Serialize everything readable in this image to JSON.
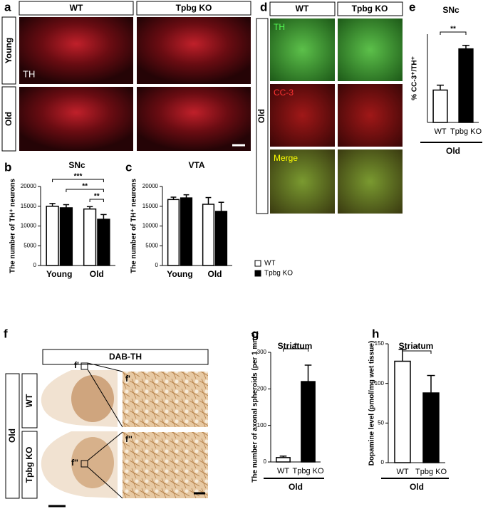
{
  "chart_data": [
    {
      "type": "bar",
      "panel": "b",
      "title": "SNc",
      "y_label": "The number of TH⁺ neurons",
      "categories": [
        "Young",
        "Old"
      ],
      "series": [
        {
          "name": "WT",
          "color": "#ffffff",
          "values": [
            15000,
            14300
          ],
          "errors": [
            700,
            600
          ]
        },
        {
          "name": "Tpbg KO",
          "color": "#000000",
          "values": [
            14600,
            11700
          ],
          "errors": [
            800,
            1200
          ]
        }
      ],
      "ylim": [
        0,
        20000
      ],
      "yticks": [
        0,
        5000,
        10000,
        15000,
        20000
      ],
      "annotations": [
        "***",
        "**",
        "**"
      ]
    },
    {
      "type": "bar",
      "panel": "c",
      "title": "VTA",
      "y_label": "The number of TH⁺ neurons",
      "categories": [
        "Young",
        "Old"
      ],
      "series": [
        {
          "name": "WT",
          "color": "#ffffff",
          "values": [
            16700,
            15500
          ],
          "errors": [
            600,
            1700
          ]
        },
        {
          "name": "Tpbg KO",
          "color": "#000000",
          "values": [
            17100,
            13700
          ],
          "errors": [
            800,
            2300
          ]
        }
      ],
      "ylim": [
        0,
        20000
      ],
      "yticks": [
        0,
        5000,
        10000,
        15000,
        20000
      ],
      "legend": "right"
    },
    {
      "type": "bar",
      "panel": "e",
      "title": "SNc",
      "y_label": "% CC-3⁺/TH⁺",
      "categories": [
        "WT",
        "Tpbg KO"
      ],
      "values": [
        16.5,
        37.5
      ],
      "errors": [
        2.5,
        1.8
      ],
      "colors": [
        "#ffffff",
        "#000000"
      ],
      "ylim": [
        0,
        45
      ],
      "group_label": "Old",
      "annotations": [
        "**"
      ]
    },
    {
      "type": "bar",
      "panel": "g",
      "title": "Striatum",
      "y_label": "The number of axonal spheroids (per 1 mm²)",
      "categories": [
        "WT",
        "Tpbg KO"
      ],
      "values": [
        12,
        220
      ],
      "errors": [
        4,
        45
      ],
      "colors": [
        "#ffffff",
        "#000000"
      ],
      "ylim": [
        0,
        300
      ],
      "yticks": [
        0,
        100,
        200,
        300
      ],
      "group_label": "Old",
      "annotations": [
        "*"
      ]
    },
    {
      "type": "bar",
      "panel": "h",
      "title": "Striatum",
      "y_label": "Dopamine level (pmol/mg wet tissue)",
      "categories": [
        "WT",
        "Tpbg KO"
      ],
      "values": [
        128,
        88
      ],
      "errors": [
        15,
        22
      ],
      "colors": [
        "#ffffff",
        "#000000"
      ],
      "ylim": [
        0,
        150
      ],
      "yticks": [
        0,
        50,
        100,
        150
      ],
      "group_label": "Old",
      "annotations": [
        "*"
      ]
    }
  ],
  "images": {
    "a": {
      "panel": "a",
      "columns": [
        "WT",
        "Tpbg KO"
      ],
      "rows": [
        "Young",
        "Old"
      ],
      "stain": "TH"
    },
    "d": {
      "panel": "d",
      "columns": [
        "WT",
        "Tpbg KO"
      ],
      "row": "Old",
      "channels": [
        "TH",
        "CC-3",
        "Merge"
      ]
    },
    "f": {
      "panel": "f",
      "header": "DAB-TH",
      "group": "Old",
      "rows": [
        "WT",
        "Tpbg KO"
      ],
      "insets": [
        "f'",
        "f''"
      ]
    }
  }
}
